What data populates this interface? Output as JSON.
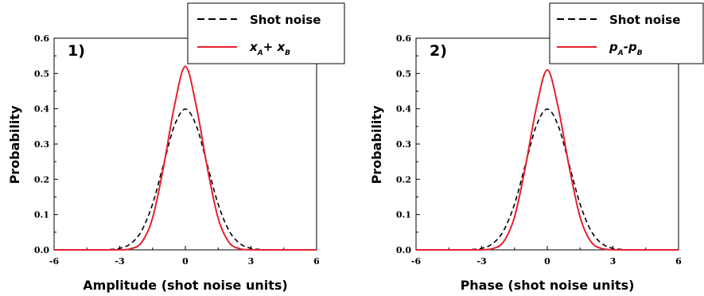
{
  "chart_data": [
    {
      "type": "line",
      "panel_label": "1)",
      "xlabel": "Amplitude (shot noise units)",
      "ylabel": "Probability",
      "xlim": [
        -6,
        6
      ],
      "ylim": [
        0,
        0.6
      ],
      "xticks": [
        "-6",
        "-3",
        "0",
        "3",
        "6"
      ],
      "yticks": [
        "0.0",
        "0.1",
        "0.2",
        "0.3",
        "0.4",
        "0.5",
        "0.6"
      ],
      "legend_position": "top-right",
      "series": [
        {
          "name": "Shot noise",
          "style": "dashed",
          "color": "#000000",
          "x": [
            -6,
            -5,
            -4,
            -3.5,
            -3,
            -2.5,
            -2,
            -1.5,
            -1,
            -0.5,
            0,
            0.5,
            1,
            1.5,
            2,
            2.5,
            3,
            3.5,
            4,
            5,
            6
          ],
          "y": [
            0.0,
            0.0,
            0.0001,
            0.0009,
            0.0044,
            0.0175,
            0.054,
            0.1295,
            0.242,
            0.352,
            0.399,
            0.352,
            0.242,
            0.1295,
            0.054,
            0.0175,
            0.0044,
            0.0009,
            0.0001,
            0.0,
            0.0
          ]
        },
        {
          "name": "x_A + x_B",
          "legend_main": [
            "x",
            "+ x"
          ],
          "legend_subs": [
            "A",
            "B"
          ],
          "style": "solid",
          "color": "#e4202c",
          "x": [
            -6,
            -5,
            -4,
            -3,
            -2.5,
            -2,
            -1.5,
            -1,
            -0.5,
            0,
            0.5,
            1,
            1.5,
            2,
            2.5,
            3,
            4,
            5,
            6
          ],
          "y": [
            0.0,
            0.0,
            0.0,
            0.0002,
            0.003,
            0.021,
            0.0896,
            0.2345,
            0.4076,
            0.52,
            0.4076,
            0.2345,
            0.0896,
            0.021,
            0.003,
            0.0002,
            0.0,
            0.0,
            0.0
          ]
        }
      ]
    },
    {
      "type": "line",
      "panel_label": "2)",
      "xlabel": "Phase (shot noise units)",
      "ylabel": "Probability",
      "xlim": [
        -6,
        6
      ],
      "ylim": [
        0,
        0.6
      ],
      "xticks": [
        "-6",
        "-3",
        "0",
        "3",
        "6"
      ],
      "yticks": [
        "0.0",
        "0.1",
        "0.2",
        "0.3",
        "0.4",
        "0.5",
        "0.6"
      ],
      "legend_position": "top-right",
      "series": [
        {
          "name": "Shot noise",
          "style": "dashed",
          "color": "#000000",
          "x": [
            -6,
            -5,
            -4,
            -3.5,
            -3,
            -2.5,
            -2,
            -1.5,
            -1,
            -0.5,
            0,
            0.5,
            1,
            1.5,
            2,
            2.5,
            3,
            3.5,
            4,
            5,
            6
          ],
          "y": [
            0.0,
            0.0,
            0.0001,
            0.0009,
            0.0044,
            0.0175,
            0.054,
            0.1295,
            0.242,
            0.352,
            0.399,
            0.352,
            0.242,
            0.1295,
            0.054,
            0.0175,
            0.0044,
            0.0009,
            0.0001,
            0.0,
            0.0
          ]
        },
        {
          "name": "p_A - p_B",
          "legend_main": [
            "p",
            "-p"
          ],
          "legend_subs": [
            "A",
            "B"
          ],
          "style": "solid",
          "color": "#e4202c",
          "x": [
            -6,
            -5,
            -4,
            -3,
            -2.5,
            -2,
            -1.5,
            -1,
            -0.5,
            0,
            0.5,
            1,
            1.5,
            2,
            2.5,
            3,
            4,
            5,
            6
          ],
          "y": [
            0.0,
            0.0,
            0.0,
            0.0003,
            0.0035,
            0.0229,
            0.0927,
            0.2357,
            0.4031,
            0.51,
            0.4031,
            0.2357,
            0.0927,
            0.0229,
            0.0035,
            0.0003,
            0.0,
            0.0,
            0.0
          ]
        }
      ]
    }
  ]
}
